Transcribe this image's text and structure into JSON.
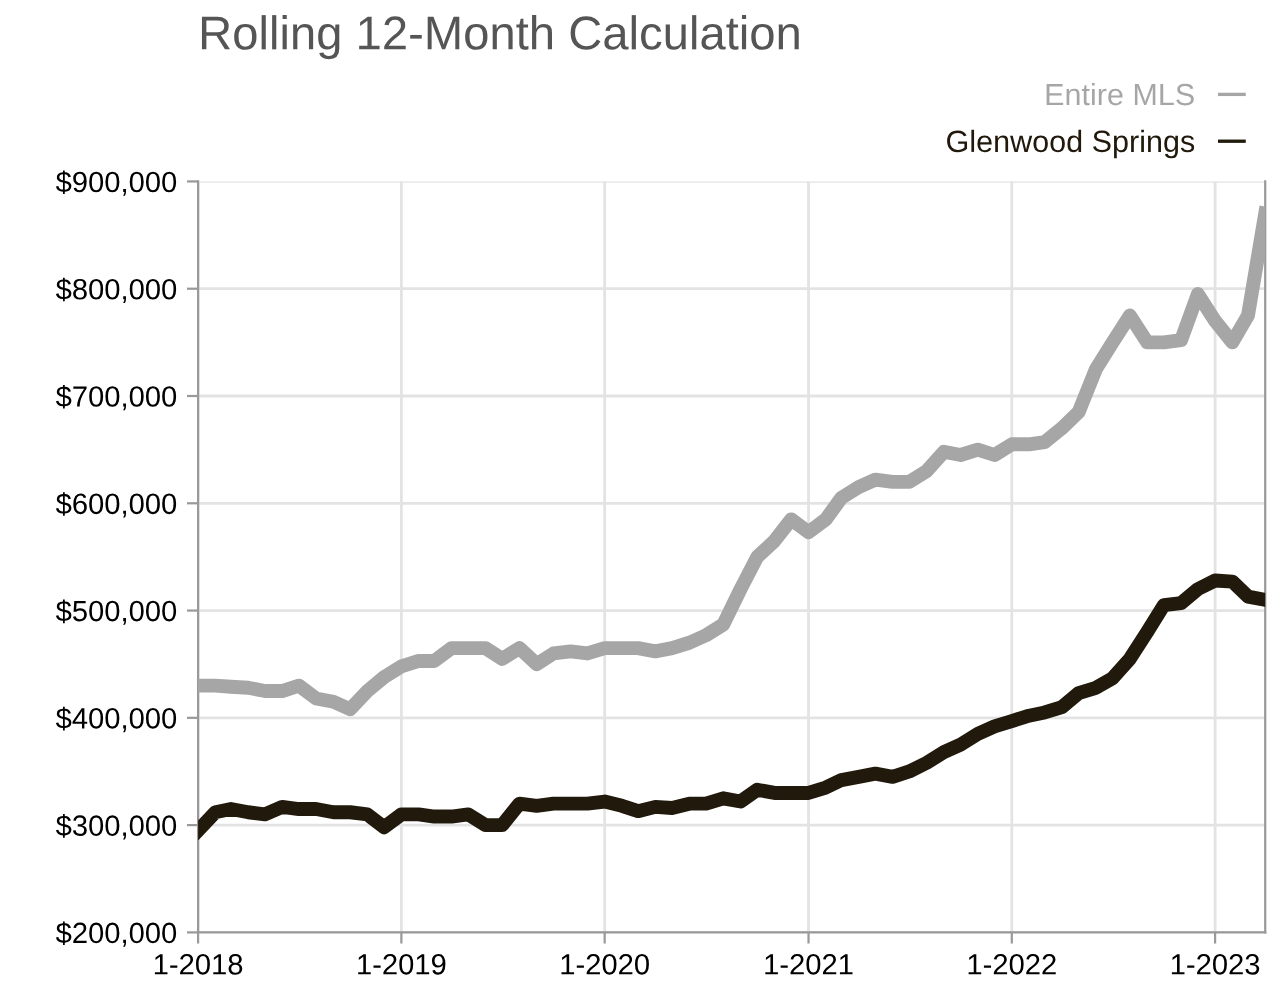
{
  "chart_data": {
    "type": "line",
    "title": "Rolling 12-Month Calculation",
    "x": [
      "2018-01",
      "2018-02",
      "2018-03",
      "2018-04",
      "2018-05",
      "2018-06",
      "2018-07",
      "2018-08",
      "2018-09",
      "2018-10",
      "2018-11",
      "2018-12",
      "2019-01",
      "2019-02",
      "2019-03",
      "2019-04",
      "2019-05",
      "2019-06",
      "2019-07",
      "2019-08",
      "2019-09",
      "2019-10",
      "2019-11",
      "2019-12",
      "2020-01",
      "2020-02",
      "2020-03",
      "2020-04",
      "2020-05",
      "2020-06",
      "2020-07",
      "2020-08",
      "2020-09",
      "2020-10",
      "2020-11",
      "2020-12",
      "2021-01",
      "2021-02",
      "2021-03",
      "2021-04",
      "2021-05",
      "2021-06",
      "2021-07",
      "2021-08",
      "2021-09",
      "2021-10",
      "2021-11",
      "2021-12",
      "2022-01",
      "2022-02",
      "2022-03",
      "2022-04",
      "2022-05",
      "2022-06",
      "2022-07",
      "2022-08",
      "2022-09",
      "2022-10",
      "2022-11",
      "2022-12",
      "2023-01",
      "2023-02",
      "2023-03",
      "2023-04"
    ],
    "series": [
      {
        "name": "Entire MLS",
        "color": "#a6a6a6",
        "values": [
          430000,
          430000,
          429000,
          428000,
          425000,
          425000,
          430000,
          418000,
          415000,
          408000,
          425000,
          438000,
          448000,
          453000,
          453000,
          465000,
          465000,
          465000,
          455000,
          465000,
          450000,
          460000,
          462000,
          460000,
          465000,
          465000,
          465000,
          462000,
          465000,
          470000,
          477000,
          487000,
          520000,
          550000,
          565000,
          585000,
          573000,
          585000,
          605000,
          615000,
          622000,
          620000,
          620000,
          630000,
          648000,
          645000,
          650000,
          645000,
          655000,
          655000,
          657000,
          670000,
          685000,
          725000,
          750000,
          775000,
          750000,
          750000,
          752000,
          795000,
          770000,
          750000,
          775000,
          870000
        ]
      },
      {
        "name": "Glenwood Springs",
        "color": "#211a0c",
        "values": [
          295000,
          312000,
          315000,
          312000,
          310000,
          317000,
          315000,
          315000,
          312000,
          312000,
          310000,
          298000,
          310000,
          310000,
          308000,
          308000,
          310000,
          300000,
          300000,
          320000,
          318000,
          320000,
          320000,
          320000,
          322000,
          318000,
          313000,
          317000,
          316000,
          320000,
          320000,
          325000,
          322000,
          333000,
          330000,
          330000,
          330000,
          335000,
          342000,
          345000,
          348000,
          345000,
          350000,
          358000,
          368000,
          375000,
          385000,
          392000,
          397000,
          402000,
          405000,
          410000,
          423000,
          428000,
          437000,
          455000,
          480000,
          505000,
          507000,
          520000,
          528000,
          527000,
          513000,
          510000
        ]
      }
    ],
    "xlim": [
      "2018-01",
      "2023-04"
    ],
    "xticks": [
      {
        "value": "2018-01",
        "label": "1-2018"
      },
      {
        "value": "2019-01",
        "label": "1-2019"
      },
      {
        "value": "2020-01",
        "label": "1-2020"
      },
      {
        "value": "2021-01",
        "label": "1-2021"
      },
      {
        "value": "2022-01",
        "label": "1-2022"
      },
      {
        "value": "2023-01",
        "label": "1-2023"
      }
    ],
    "ylim": [
      200000,
      900000
    ],
    "yticks": [
      {
        "value": 200000,
        "label": "$200,000"
      },
      {
        "value": 300000,
        "label": "$300,000"
      },
      {
        "value": 400000,
        "label": "$400,000"
      },
      {
        "value": 500000,
        "label": "$500,000"
      },
      {
        "value": 600000,
        "label": "$600,000"
      },
      {
        "value": 700000,
        "label": "$700,000"
      },
      {
        "value": 800000,
        "label": "$800,000"
      },
      {
        "value": 900000,
        "label": "$900,000"
      }
    ],
    "grid": true,
    "legend": "top right",
    "line_style": "solid"
  }
}
